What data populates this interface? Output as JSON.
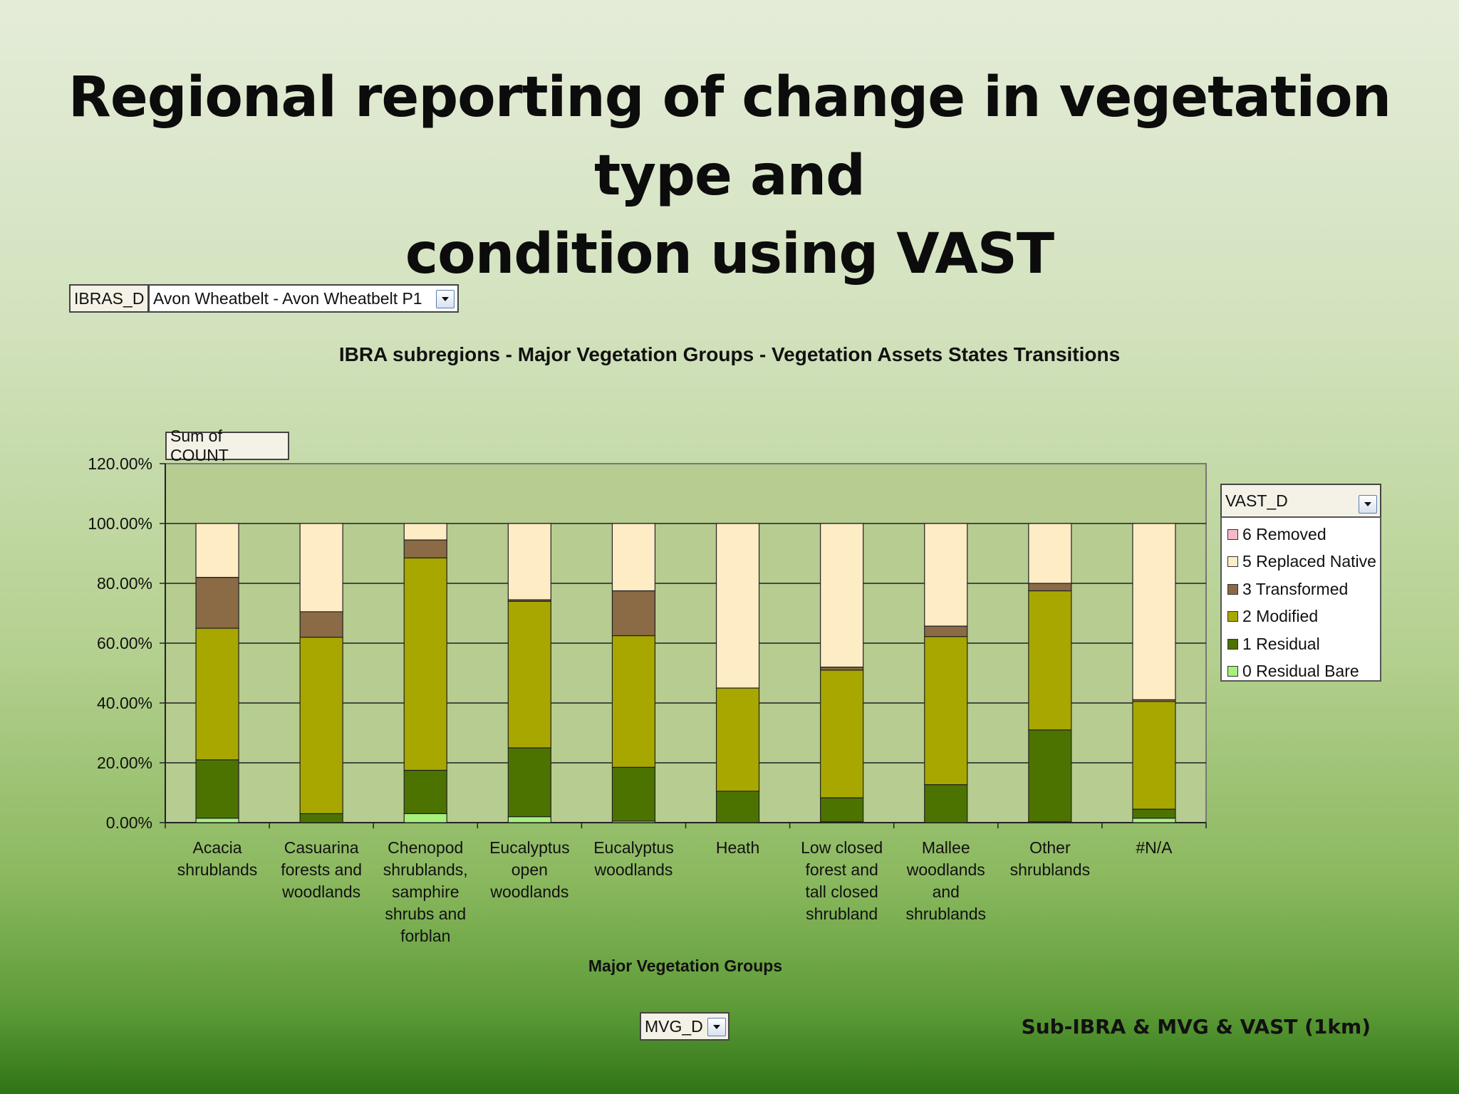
{
  "slide": {
    "title_line1": "Regional reporting of change in vegetation type and",
    "title_line2": "condition using VAST",
    "footer": "Sub-IBRA & MVG & VAST (1km)"
  },
  "controls": {
    "filter_field": "IBRAS_D",
    "filter_value": "Avon Wheatbelt - Avon Wheatbelt P1",
    "data_field": "Sum of COUNT",
    "legend_field": "VAST_D",
    "axis_field": "MVG_D"
  },
  "colors": {
    "plot_background": "#b6cc91",
    "gridline": "#222222"
  },
  "chart_data": {
    "type": "bar",
    "stacked": true,
    "title": "IBRA subregions - Major Vegetation Groups - Vegetation Assets States Transitions",
    "xlabel": "Major Vegetation Groups",
    "ylabel": "",
    "ylim": [
      0,
      1.2
    ],
    "yticks": [
      "0.00%",
      "20.00%",
      "40.00%",
      "60.00%",
      "80.00%",
      "100.00%",
      "120.00%"
    ],
    "grid": true,
    "legend_position": "right",
    "categories": [
      [
        "Acacia",
        "shrublands"
      ],
      [
        "Casuarina",
        "forests and",
        "woodlands"
      ],
      [
        "Chenopod",
        "shrublands,",
        "samphire",
        "shrubs and",
        "forblan"
      ],
      [
        "Eucalyptus",
        "open",
        "woodlands"
      ],
      [
        "Eucalyptus",
        "woodlands"
      ],
      [
        "Heath"
      ],
      [
        "Low closed",
        "forest and",
        "tall closed",
        "shrubland"
      ],
      [
        "Mallee",
        "woodlands",
        "and",
        "shrublands"
      ],
      [
        "Other",
        "shrublands"
      ],
      [
        "#N/A"
      ]
    ],
    "series": [
      {
        "name": "0 Residual Bare",
        "color": "#a6f07c",
        "values": [
          0.015,
          0.0,
          0.03,
          0.02,
          0.005,
          0.0,
          0.003,
          0.0,
          0.003,
          0.015
        ]
      },
      {
        "name": "1 Residual",
        "color": "#4c7300",
        "values": [
          0.195,
          0.03,
          0.145,
          0.23,
          0.18,
          0.105,
          0.08,
          0.127,
          0.307,
          0.03
        ]
      },
      {
        "name": "2 Modified",
        "color": "#a7a700",
        "values": [
          0.44,
          0.59,
          0.71,
          0.49,
          0.44,
          0.345,
          0.427,
          0.495,
          0.465,
          0.36
        ]
      },
      {
        "name": "3 Transformed",
        "color": "#8a6b45",
        "values": [
          0.17,
          0.085,
          0.06,
          0.005,
          0.15,
          0.0,
          0.01,
          0.035,
          0.025,
          0.006
        ]
      },
      {
        "name": "5 Replaced Native",
        "color": "#feecc4",
        "values": [
          0.18,
          0.295,
          0.055,
          0.255,
          0.225,
          0.55,
          0.48,
          0.343,
          0.2,
          0.589
        ]
      },
      {
        "name": "6 Removed",
        "color": "#f7b8c8",
        "values": [
          0,
          0,
          0,
          0,
          0,
          0,
          0,
          0,
          0,
          0
        ]
      }
    ]
  }
}
